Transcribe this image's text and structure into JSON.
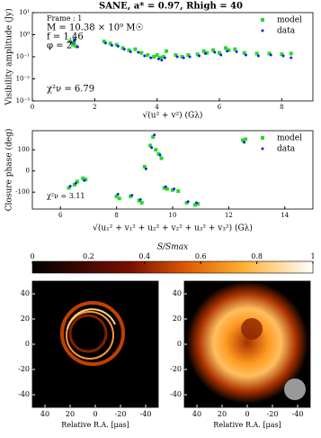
{
  "title": "SANE, a* = 0.97, Rhigh = 40",
  "chart_data": [
    {
      "type": "scatter",
      "ylog": true,
      "xlabel": "√(u² + v²)   (Gλ)",
      "ylabel": "Visibility amplitude (Jy)",
      "annotations": [
        "Frame : 1",
        "M = 10.38 × 10⁹ M☉",
        "f = 1.46",
        "φ = 2°",
        "χ²ν = 6.79"
      ],
      "xlim": [
        0,
        9
      ],
      "xticks": [
        0,
        2,
        4,
        6,
        8
      ],
      "ylim": [
        0.001,
        10
      ],
      "yticks": [
        {
          "value": 0.001,
          "label": "10⁻³"
        },
        {
          "value": 0.01,
          "label": "10⁻²"
        },
        {
          "value": 0.1,
          "label": "10⁻¹"
        },
        {
          "value": 1,
          "label": "10⁰"
        },
        {
          "value": 10,
          "label": "10¹"
        }
      ],
      "legend": "upper right",
      "series": [
        {
          "name": "model",
          "color": "#22dd22",
          "x": [
            1.2,
            1.3,
            1.35,
            1.4,
            2.3,
            2.5,
            2.7,
            2.9,
            3.1,
            3.3,
            3.5,
            3.7,
            3.9,
            4.0,
            4.1,
            4.2,
            4.3,
            4.6,
            4.8,
            5.0,
            5.3,
            5.5,
            5.6,
            5.8,
            6.0,
            6.2,
            6.3,
            6.5,
            6.8,
            7.2,
            7.6,
            8.0,
            8.3
          ],
          "values": [
            0.5,
            0.35,
            0.6,
            0.3,
            0.5,
            0.4,
            0.35,
            0.25,
            0.2,
            0.22,
            0.15,
            0.12,
            0.1,
            0.12,
            0.09,
            0.1,
            0.18,
            0.12,
            0.1,
            0.12,
            0.13,
            0.18,
            0.15,
            0.2,
            0.15,
            0.25,
            0.2,
            0.22,
            0.15,
            0.14,
            0.14,
            0.13,
            0.14
          ]
        },
        {
          "name": "data",
          "color": "#1a1aee",
          "x": [
            1.25,
            1.35,
            1.45,
            2.35,
            2.55,
            2.75,
            2.95,
            3.15,
            3.4,
            3.6,
            3.8,
            4.05,
            4.15,
            4.25,
            4.65,
            4.85,
            5.05,
            5.35,
            5.55,
            5.85,
            6.05,
            6.25,
            6.55,
            6.85,
            7.25,
            7.65,
            8.05,
            8.3
          ],
          "values": [
            0.45,
            0.55,
            0.28,
            0.42,
            0.33,
            0.3,
            0.22,
            0.17,
            0.16,
            0.11,
            0.09,
            0.08,
            0.07,
            0.09,
            0.1,
            0.09,
            0.1,
            0.11,
            0.14,
            0.16,
            0.12,
            0.18,
            0.17,
            0.12,
            0.11,
            0.12,
            0.11,
            0.09
          ]
        }
      ]
    },
    {
      "type": "scatter",
      "ylog": false,
      "xlabel": "√(u₁² + v₁² + u₂² + v₂² + u₃² + v₃²)   (Gλ)",
      "ylabel": "Closure phase (deg)",
      "annotations": [
        "χ²ν = 3.11"
      ],
      "xlim": [
        5,
        15
      ],
      "xticks": [
        6,
        8,
        10,
        12,
        14
      ],
      "ylim": [
        -180,
        190
      ],
      "yticks": [
        -100,
        0,
        100
      ],
      "legend": "upper right",
      "series": [
        {
          "name": "model",
          "color": "#22dd22",
          "x": [
            6.3,
            6.5,
            6.6,
            6.8,
            6.9,
            8.0,
            8.1,
            8.5,
            8.8,
            8.9,
            9.0,
            9.2,
            9.3,
            9.4,
            9.5,
            9.6,
            9.7,
            9.8,
            10.0,
            10.2,
            10.5,
            10.8,
            10.9,
            12.5,
            12.6
          ],
          "values": [
            -80,
            -65,
            -50,
            -35,
            -40,
            -120,
            -130,
            -120,
            -140,
            -150,
            20,
            120,
            160,
            100,
            80,
            60,
            -80,
            -85,
            -90,
            -95,
            -150,
            -160,
            -155,
            145,
            150
          ]
        },
        {
          "name": "data",
          "color": "#1a1aee",
          "x": [
            6.35,
            6.55,
            6.85,
            8.05,
            8.55,
            8.85,
            9.05,
            9.25,
            9.35,
            9.55,
            9.75,
            10.05,
            10.55,
            10.85,
            12.55
          ],
          "values": [
            -72,
            -58,
            -45,
            -110,
            -115,
            -135,
            10,
            110,
            170,
            75,
            -75,
            -85,
            -145,
            -150,
            135
          ]
        }
      ]
    },
    {
      "type": "image",
      "colorbar_label": "S/Smax",
      "clim": [
        0,
        1
      ],
      "colorbar_ticks": [
        0,
        0.2,
        0.4,
        0.6,
        0.8,
        1
      ],
      "xlim": [
        50,
        -50
      ],
      "ylim": [
        -50,
        50
      ],
      "xticks": [
        40,
        20,
        0,
        -20,
        -40
      ],
      "yticks": [
        -40,
        -20,
        0,
        20,
        40
      ],
      "xlabel": "Relative R.A. [μas]"
    }
  ]
}
